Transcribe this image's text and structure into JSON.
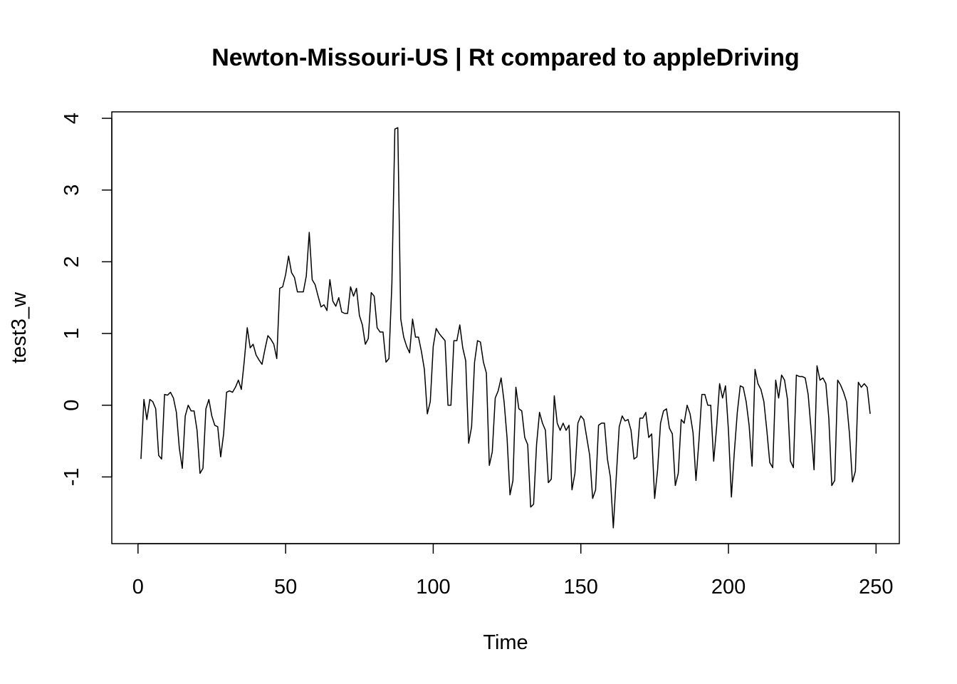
{
  "chart_data": {
    "type": "line",
    "title": "Newton-Missouri-US | Rt compared to appleDriving",
    "x_label": "Time",
    "y_label": "test3_w",
    "x": [
      1,
      2,
      3,
      4,
      5,
      6,
      7,
      8,
      9,
      10,
      11,
      12,
      13,
      14,
      15,
      16,
      17,
      18,
      19,
      20,
      21,
      22,
      23,
      24,
      25,
      26,
      27,
      28,
      29,
      30,
      31,
      32,
      33,
      34,
      35,
      36,
      37,
      38,
      39,
      40,
      41,
      42,
      43,
      44,
      45,
      46,
      47,
      48,
      49,
      50,
      51,
      52,
      53,
      54,
      55,
      56,
      57,
      58,
      59,
      60,
      61,
      62,
      63,
      64,
      65,
      66,
      67,
      68,
      69,
      70,
      71,
      72,
      73,
      74,
      75,
      76,
      77,
      78,
      79,
      80,
      81,
      82,
      83,
      84,
      85,
      86,
      87,
      88,
      89,
      90,
      91,
      92,
      93,
      94,
      95,
      96,
      97,
      98,
      99,
      100,
      101,
      102,
      103,
      104,
      105,
      106,
      107,
      108,
      109,
      110,
      111,
      112,
      113,
      114,
      115,
      116,
      117,
      118,
      119,
      120,
      121,
      122,
      123,
      124,
      125,
      126,
      127,
      128,
      129,
      130,
      131,
      132,
      133,
      134,
      135,
      136,
      137,
      138,
      139,
      140,
      141,
      142,
      143,
      144,
      145,
      146,
      147,
      148,
      149,
      150,
      151,
      152,
      153,
      154,
      155,
      156,
      157,
      158,
      159,
      160,
      161,
      162,
      163,
      164,
      165,
      166,
      167,
      168,
      169,
      170,
      171,
      172,
      173,
      174,
      175,
      176,
      177,
      178,
      179,
      180,
      181,
      182,
      183,
      184,
      185,
      186,
      187,
      188,
      189,
      190,
      191,
      192,
      193,
      194,
      195,
      196,
      197,
      198,
      199,
      200,
      201,
      202,
      203,
      204,
      205,
      206,
      207,
      208,
      209,
      210,
      211,
      212,
      213,
      214,
      215,
      216,
      217,
      218,
      219,
      220,
      221,
      222,
      223,
      224,
      225,
      226,
      227,
      228,
      229,
      230,
      231,
      232,
      233,
      234,
      235,
      236,
      237,
      238,
      239,
      240,
      241,
      242,
      243,
      244,
      245,
      246,
      247,
      248
    ],
    "series": [
      {
        "name": "test3_w",
        "color": "#000000",
        "values": [
          -0.75,
          0.08,
          -0.2,
          0.08,
          0.05,
          -0.05,
          -0.7,
          -0.75,
          0.15,
          0.14,
          0.18,
          0.1,
          -0.1,
          -0.6,
          -0.88,
          -0.15,
          0.0,
          -0.08,
          -0.08,
          -0.35,
          -0.95,
          -0.88,
          -0.05,
          0.08,
          -0.15,
          -0.28,
          -0.3,
          -0.72,
          -0.4,
          0.18,
          0.2,
          0.18,
          0.25,
          0.35,
          0.22,
          0.62,
          1.08,
          0.8,
          0.85,
          0.7,
          0.63,
          0.57,
          0.78,
          0.97,
          0.92,
          0.85,
          0.65,
          1.63,
          1.65,
          1.82,
          2.08,
          1.85,
          1.78,
          1.58,
          1.58,
          1.58,
          1.8,
          2.41,
          1.75,
          1.68,
          1.52,
          1.37,
          1.4,
          1.32,
          1.75,
          1.45,
          1.38,
          1.5,
          1.3,
          1.28,
          1.28,
          1.65,
          1.52,
          1.63,
          1.25,
          1.12,
          0.85,
          0.93,
          1.57,
          1.52,
          1.08,
          1.02,
          1.02,
          0.6,
          0.65,
          1.7,
          3.85,
          3.87,
          1.2,
          0.95,
          0.82,
          0.73,
          1.2,
          0.95,
          0.95,
          0.75,
          0.5,
          -0.12,
          0.05,
          0.82,
          1.07,
          1.0,
          0.95,
          0.9,
          0.0,
          0.0,
          0.9,
          0.9,
          1.12,
          0.8,
          0.62,
          -0.53,
          -0.3,
          0.6,
          0.9,
          0.88,
          0.6,
          0.45,
          -0.84,
          -0.65,
          0.1,
          0.2,
          0.38,
          0.05,
          -0.45,
          -1.25,
          -1.05,
          0.25,
          -0.05,
          -0.08,
          -0.45,
          -0.55,
          -1.42,
          -1.38,
          -0.55,
          -0.1,
          -0.25,
          -0.35,
          -1.08,
          -1.03,
          0.13,
          -0.25,
          -0.35,
          -0.25,
          -0.35,
          -0.28,
          -1.18,
          -0.95,
          -0.25,
          -0.15,
          -0.2,
          -0.45,
          -0.7,
          -1.3,
          -1.18,
          -0.28,
          -0.25,
          -0.25,
          -0.75,
          -1.0,
          -1.71,
          -1.0,
          -0.3,
          -0.15,
          -0.22,
          -0.2,
          -0.35,
          -0.75,
          -0.72,
          -0.18,
          -0.18,
          -0.1,
          -0.45,
          -0.4,
          -1.3,
          -0.9,
          -0.25,
          -0.08,
          -0.05,
          -0.32,
          -0.4,
          -1.12,
          -0.95,
          -0.2,
          -0.25,
          0.0,
          -0.12,
          -0.38,
          -1.05,
          -0.5,
          0.15,
          0.15,
          0.0,
          0.0,
          -0.78,
          -0.3,
          0.3,
          0.1,
          0.27,
          -0.35,
          -1.28,
          -0.65,
          -0.1,
          0.27,
          0.25,
          0.05,
          -0.28,
          -0.85,
          0.5,
          0.3,
          0.22,
          0.05,
          -0.35,
          -0.8,
          -0.87,
          0.35,
          0.1,
          0.42,
          0.35,
          0.08,
          -0.78,
          -0.87,
          0.42,
          0.4,
          0.4,
          0.38,
          0.15,
          -0.35,
          -0.9,
          0.55,
          0.35,
          0.38,
          0.3,
          -0.18,
          -1.12,
          -1.05,
          0.35,
          0.28,
          0.18,
          0.05,
          -0.4,
          -1.07,
          -0.92,
          0.32,
          0.25,
          0.3,
          0.25,
          -0.12
        ]
      }
    ],
    "xlim": [
      -8.88,
      257.88
    ],
    "xticks": [
      0,
      50,
      100,
      150,
      200,
      250
    ],
    "ylim": [
      -1.93,
      4.09
    ],
    "yticks": [
      -1,
      0,
      1,
      2,
      3,
      4
    ]
  }
}
